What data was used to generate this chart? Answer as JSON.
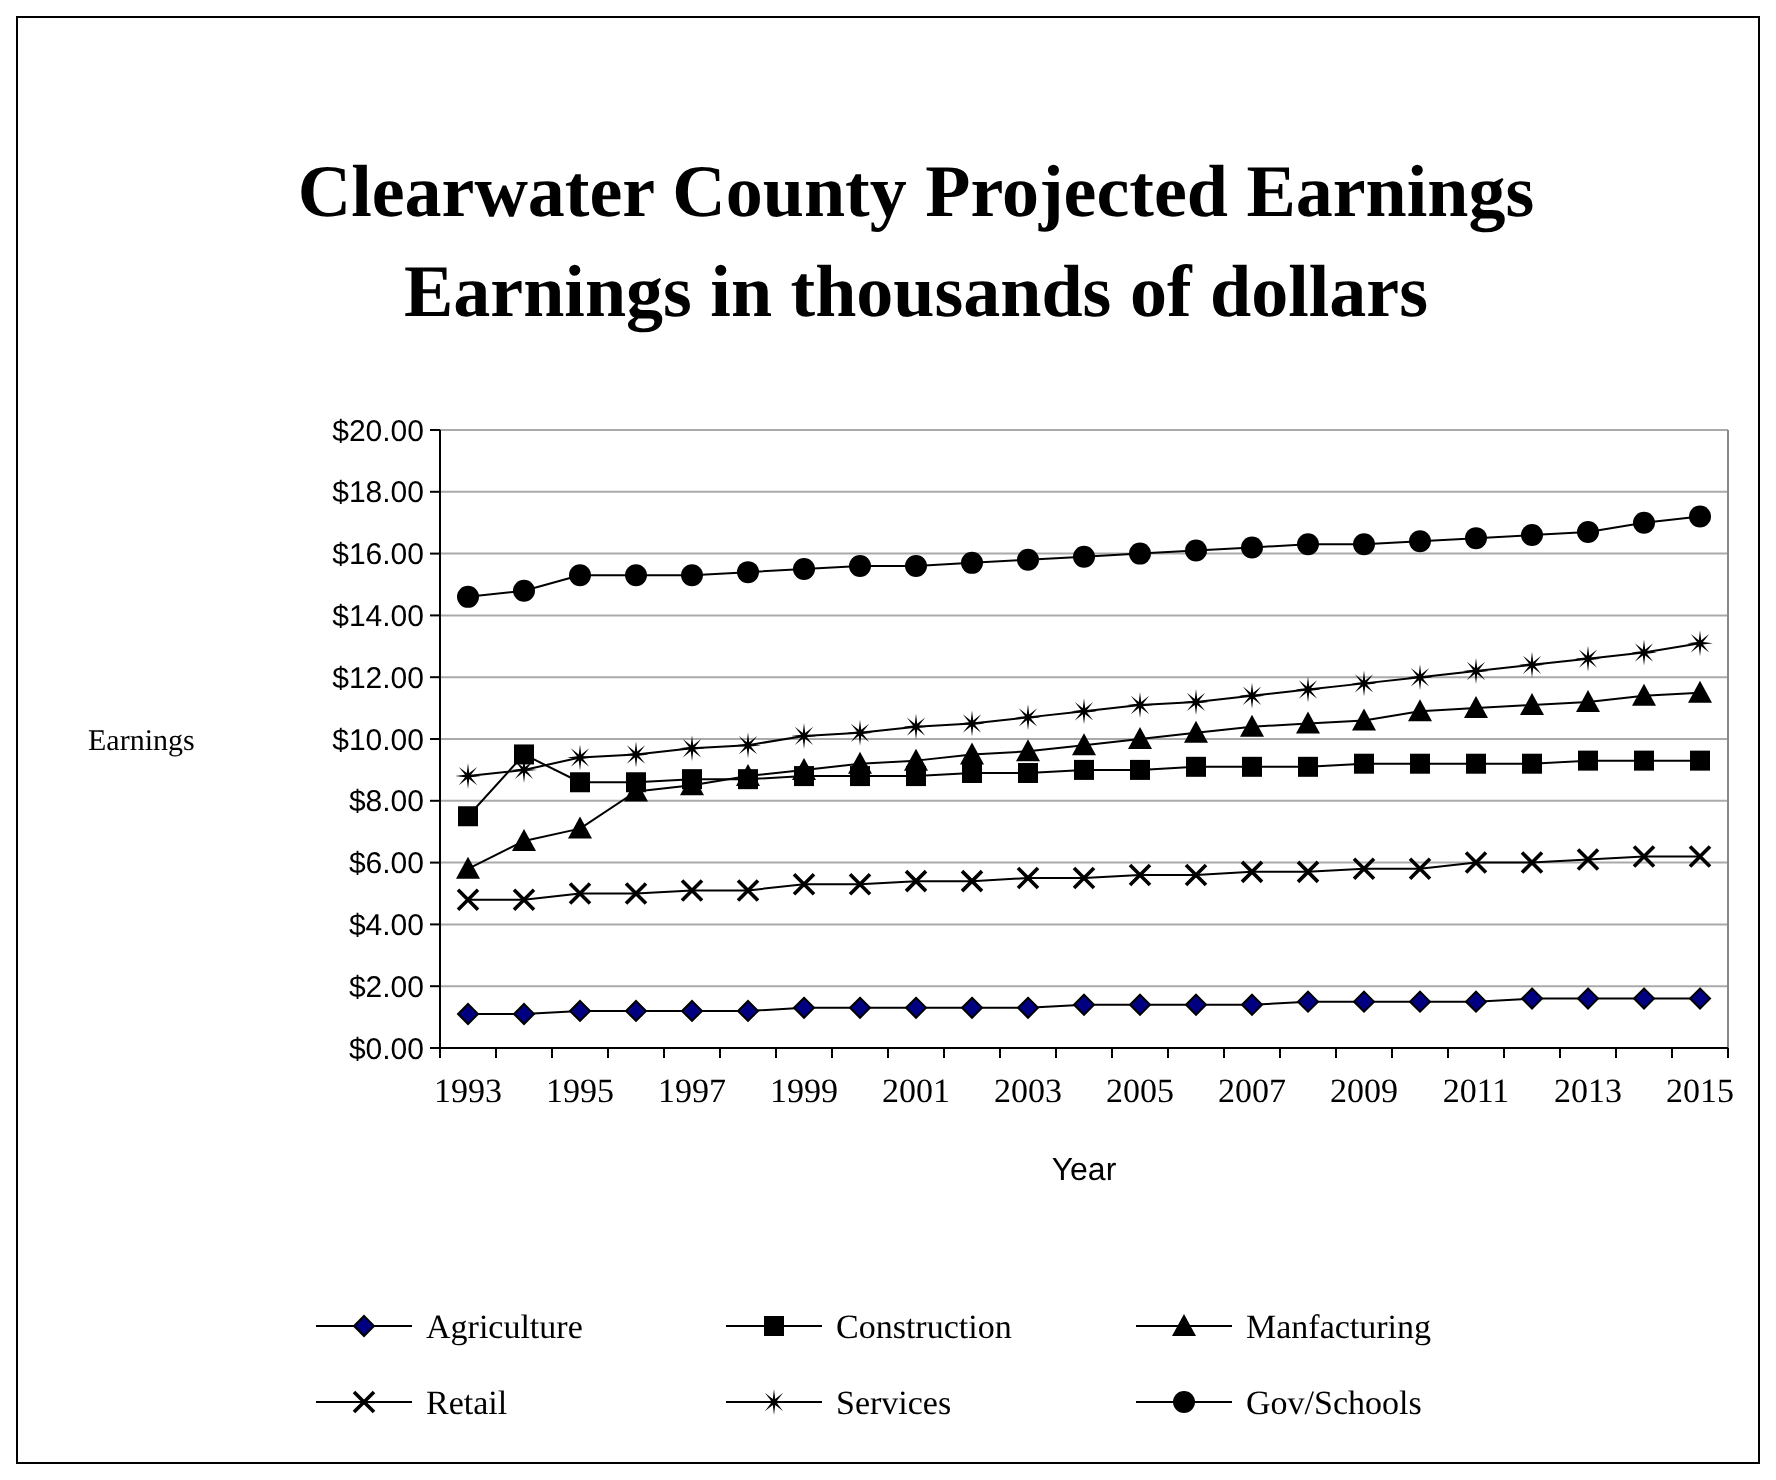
{
  "chart_data": {
    "type": "line",
    "title": "Clearwater County Projected Earnings",
    "subtitle": "Earnings in thousands of dollars",
    "xlabel": "Year",
    "ylabel": "Earnings",
    "categories": [
      "1993",
      null,
      "1995",
      null,
      "1997",
      null,
      "1999",
      null,
      "2001",
      null,
      "2003",
      null,
      "2005",
      null,
      "2007",
      null,
      "2009",
      null,
      "2011",
      null,
      "2013",
      null,
      "2015"
    ],
    "ylim": [
      0,
      20
    ],
    "yticks": [
      {
        "value": 0,
        "label": "$0.00"
      },
      {
        "value": 2,
        "label": "$2.00"
      },
      {
        "value": 4,
        "label": "$4.00"
      },
      {
        "value": 6,
        "label": "$6.00"
      },
      {
        "value": 8,
        "label": "$8.00"
      },
      {
        "value": 10,
        "label": "$10.00"
      },
      {
        "value": 12,
        "label": "$12.00"
      },
      {
        "value": 14,
        "label": "$14.00"
      },
      {
        "value": 16,
        "label": "$16.00"
      },
      {
        "value": 18,
        "label": "$18.00"
      },
      {
        "value": 20,
        "label": "$20.00"
      }
    ],
    "grid": "y",
    "legend": "bottom",
    "line_style": "solid",
    "series": [
      {
        "name": "Agriculture",
        "color": "#000080",
        "marker": "diamond",
        "values": [
          1.1,
          1.1,
          1.2,
          1.2,
          1.2,
          1.2,
          1.3,
          1.3,
          1.3,
          1.3,
          1.3,
          1.4,
          1.4,
          1.4,
          1.4,
          1.5,
          1.5,
          1.5,
          1.5,
          1.6,
          1.6,
          1.6,
          1.6
        ]
      },
      {
        "name": "Construction",
        "color": "#000000",
        "marker": "square",
        "values": [
          7.5,
          9.5,
          8.6,
          8.6,
          8.7,
          8.7,
          8.8,
          8.8,
          8.8,
          8.9,
          8.9,
          9.0,
          9.0,
          9.1,
          9.1,
          9.1,
          9.2,
          9.2,
          9.2,
          9.2,
          9.3,
          9.3,
          9.3
        ]
      },
      {
        "name": "Manfacturing",
        "color": "#000000",
        "marker": "triangle",
        "values": [
          5.8,
          6.7,
          7.1,
          8.3,
          8.5,
          8.8,
          9.0,
          9.2,
          9.3,
          9.5,
          9.6,
          9.8,
          10.0,
          10.2,
          10.4,
          10.5,
          10.6,
          10.9,
          11.0,
          11.1,
          11.2,
          11.4,
          11.5
        ]
      },
      {
        "name": "Retail",
        "color": "#000000",
        "marker": "cross",
        "values": [
          4.8,
          4.8,
          5.0,
          5.0,
          5.1,
          5.1,
          5.3,
          5.3,
          5.4,
          5.4,
          5.5,
          5.5,
          5.6,
          5.6,
          5.7,
          5.7,
          5.8,
          5.8,
          6.0,
          6.0,
          6.1,
          6.2,
          6.2
        ]
      },
      {
        "name": "Services",
        "color": "#000000",
        "marker": "star",
        "values": [
          8.8,
          9.0,
          9.4,
          9.5,
          9.7,
          9.8,
          10.1,
          10.2,
          10.4,
          10.5,
          10.7,
          10.9,
          11.1,
          11.2,
          11.4,
          11.6,
          11.8,
          12.0,
          12.2,
          12.4,
          12.6,
          12.8,
          13.1
        ]
      },
      {
        "name": "Gov/Schools",
        "color": "#000000",
        "marker": "circle",
        "values": [
          14.6,
          14.8,
          15.3,
          15.3,
          15.3,
          15.4,
          15.5,
          15.6,
          15.6,
          15.7,
          15.8,
          15.9,
          16.0,
          16.1,
          16.2,
          16.3,
          16.3,
          16.4,
          16.5,
          16.6,
          16.7,
          17.0,
          17.2
        ]
      }
    ]
  }
}
